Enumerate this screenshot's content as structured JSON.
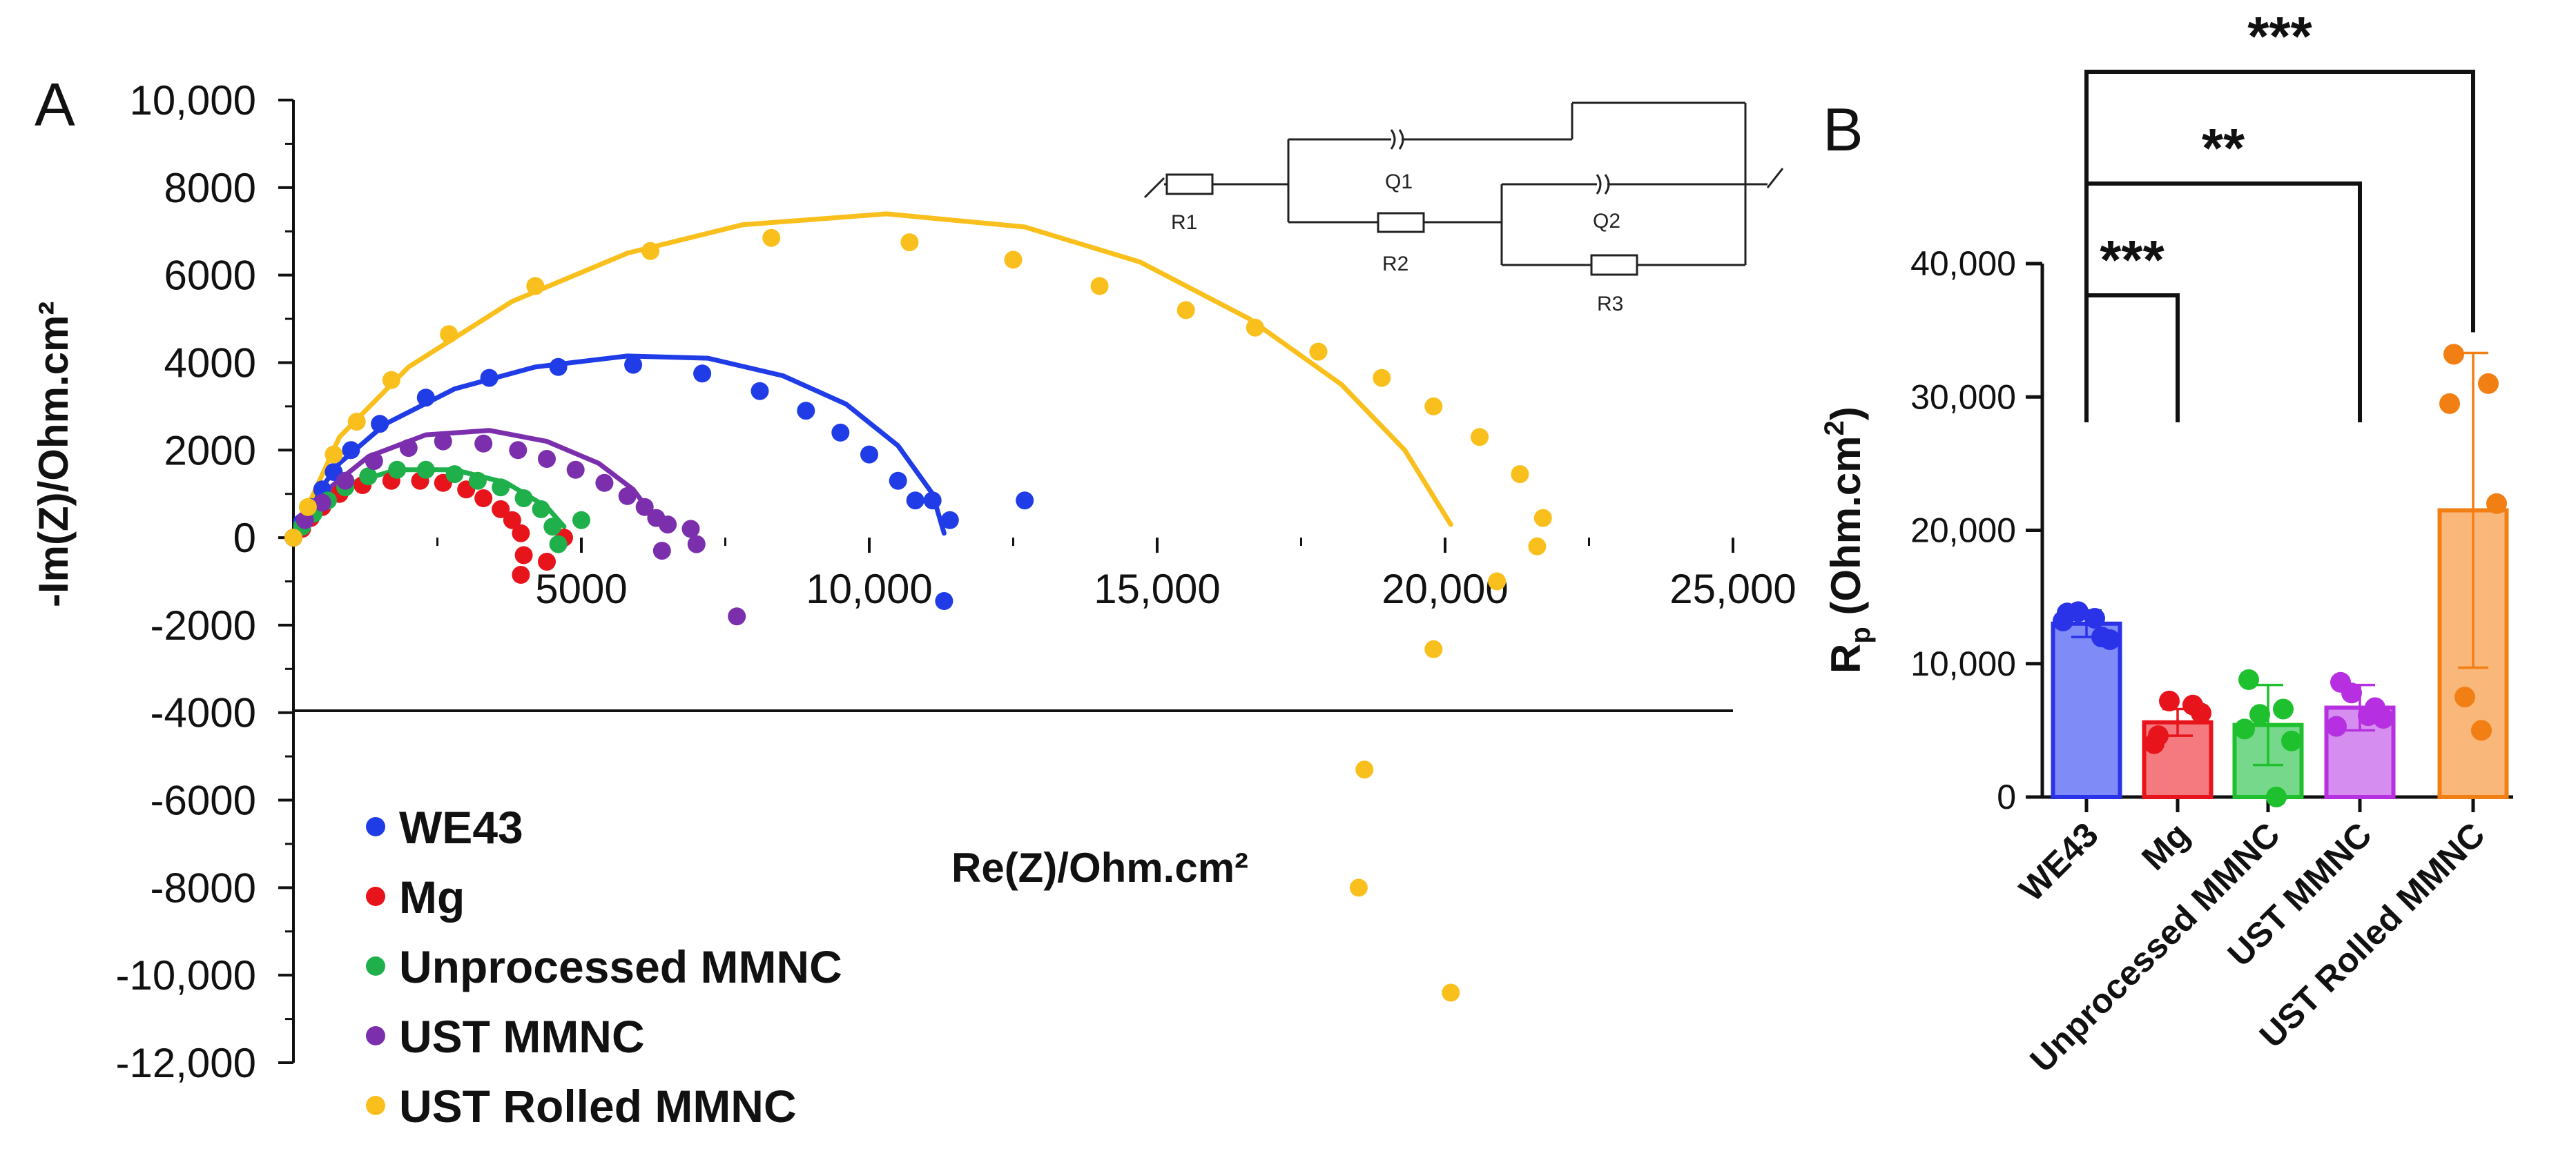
{
  "colors": {
    "WE43": "#1f3ce6",
    "Mg": "#e8141c",
    "Unprocessed MMNC": "#1fb04b",
    "UST MMNC": "#7b2fad",
    "UST Rolled MMNC": "#f9c01d",
    "bar_WE43": "#7f8cf8",
    "bar_Mg": "#f47a7f",
    "bar_Unprocessed MMNC": "#76d88a",
    "bar_UST MMNC": "#d58ef0",
    "bar_UST Rolled MMNC": "#f9b77a",
    "edge_WE43": "#2a33e8",
    "edge_Mg": "#e8141c",
    "edge_Unprocessed MMNC": "#1fc02d",
    "edge_UST MMNC": "#b62fe0",
    "edge_UST Rolled MMNC": "#f27f14"
  },
  "circuit": {
    "labels": [
      "R1",
      "Q1",
      "R2",
      "Q2",
      "R3"
    ]
  },
  "chart_data": [
    {
      "panel": "A",
      "type": "scatter",
      "title": "",
      "xlabel": "Re(Z)/Ohm.cm²",
      "ylabel": "-Im(Z)/Ohm.cm²",
      "xlim": [
        0,
        25000
      ],
      "ylim": [
        -12000,
        10000
      ],
      "xticks": [
        5000,
        10000,
        15000,
        20000,
        25000
      ],
      "xtick_labels": [
        "5000",
        "10,000",
        "15,000",
        "20,000",
        "25,000"
      ],
      "yticks": [
        10000,
        8000,
        6000,
        4000,
        2000,
        0,
        -2000,
        -4000,
        -6000,
        -8000,
        -10000,
        -12000
      ],
      "ytick_labels": [
        "10,000",
        "8000",
        "6000",
        "4000",
        "2000",
        "0",
        "-2000",
        "-4000",
        "-6000",
        "-8000",
        "-10,000",
        "-12,000"
      ],
      "legend": [
        "WE43",
        "Mg",
        "Unprocessed MMNC",
        "UST MMNC",
        "UST Rolled MMNC"
      ],
      "legend_position": "bottom-left",
      "series": [
        {
          "name": "WE43",
          "points": [
            [
              0,
              0
            ],
            [
              150,
              350
            ],
            [
              300,
              700
            ],
            [
              500,
              1100
            ],
            [
              700,
              1500
            ],
            [
              1000,
              2000
            ],
            [
              1500,
              2600
            ],
            [
              2300,
              3200
            ],
            [
              3400,
              3650
            ],
            [
              4600,
              3900
            ],
            [
              5900,
              3950
            ],
            [
              7100,
              3750
            ],
            [
              8100,
              3350
            ],
            [
              8900,
              2900
            ],
            [
              9500,
              2400
            ],
            [
              10000,
              1900
            ],
            [
              10500,
              1300
            ],
            [
              10800,
              850
            ],
            [
              11100,
              850
            ],
            [
              11400,
              400
            ],
            [
              11300,
              -1450
            ],
            [
              12700,
              850
            ]
          ],
          "fit": [
            [
              0,
              0
            ],
            [
              300,
              800
            ],
            [
              800,
              1700
            ],
            [
              1600,
              2600
            ],
            [
              2800,
              3400
            ],
            [
              4200,
              3900
            ],
            [
              5800,
              4150
            ],
            [
              7200,
              4100
            ],
            [
              8500,
              3700
            ],
            [
              9600,
              3050
            ],
            [
              10500,
              2100
            ],
            [
              11100,
              1000
            ],
            [
              11300,
              100
            ]
          ]
        },
        {
          "name": "Mg",
          "points": [
            [
              0,
              0
            ],
            [
              150,
              200
            ],
            [
              300,
              450
            ],
            [
              500,
              700
            ],
            [
              800,
              1000
            ],
            [
              1200,
              1200
            ],
            [
              1700,
              1300
            ],
            [
              2200,
              1300
            ],
            [
              2600,
              1250
            ],
            [
              3000,
              1100
            ],
            [
              3300,
              900
            ],
            [
              3600,
              650
            ],
            [
              3800,
              400
            ],
            [
              3950,
              100
            ],
            [
              4000,
              -400
            ],
            [
              3950,
              -850
            ],
            [
              4400,
              -550
            ],
            [
              4700,
              0
            ]
          ],
          "fit": []
        },
        {
          "name": "Unprocessed MMNC",
          "points": [
            [
              0,
              0
            ],
            [
              150,
              250
            ],
            [
              350,
              550
            ],
            [
              600,
              850
            ],
            [
              900,
              1150
            ],
            [
              1300,
              1400
            ],
            [
              1800,
              1550
            ],
            [
              2300,
              1550
            ],
            [
              2800,
              1450
            ],
            [
              3200,
              1300
            ],
            [
              3600,
              1150
            ],
            [
              4000,
              900
            ],
            [
              4300,
              650
            ],
            [
              4500,
              250
            ],
            [
              4600,
              -150
            ],
            [
              5000,
              400
            ]
          ],
          "fit": [
            [
              0,
              0
            ],
            [
              400,
              750
            ],
            [
              1000,
              1250
            ],
            [
              1800,
              1550
            ],
            [
              2800,
              1550
            ],
            [
              3700,
              1250
            ],
            [
              4400,
              700
            ],
            [
              4700,
              250
            ]
          ]
        },
        {
          "name": "UST MMNC",
          "points": [
            [
              0,
              0
            ],
            [
              200,
              400
            ],
            [
              500,
              800
            ],
            [
              900,
              1300
            ],
            [
              1400,
              1750
            ],
            [
              2000,
              2050
            ],
            [
              2600,
              2200
            ],
            [
              3300,
              2150
            ],
            [
              3900,
              2000
            ],
            [
              4400,
              1800
            ],
            [
              4900,
              1550
            ],
            [
              5400,
              1250
            ],
            [
              5800,
              950
            ],
            [
              6100,
              700
            ],
            [
              6300,
              450
            ],
            [
              6500,
              300
            ],
            [
              6900,
              200
            ],
            [
              7000,
              -150
            ],
            [
              6400,
              -300
            ],
            [
              7700,
              -1800
            ]
          ],
          "fit": [
            [
              0,
              0
            ],
            [
              500,
              1000
            ],
            [
              1300,
              1850
            ],
            [
              2300,
              2350
            ],
            [
              3400,
              2450
            ],
            [
              4400,
              2200
            ],
            [
              5300,
              1700
            ],
            [
              5900,
              1100
            ],
            [
              6300,
              400
            ]
          ]
        },
        {
          "name": "UST Rolled MMNC",
          "points": [
            [
              0,
              0
            ],
            [
              250,
              700
            ],
            [
              700,
              1900
            ],
            [
              1100,
              2650
            ],
            [
              1700,
              3600
            ],
            [
              2700,
              4650
            ],
            [
              4200,
              5750
            ],
            [
              6200,
              6550
            ],
            [
              8300,
              6850
            ],
            [
              10700,
              6750
            ],
            [
              12500,
              6350
            ],
            [
              14000,
              5750
            ],
            [
              15500,
              5200
            ],
            [
              16700,
              4800
            ],
            [
              17800,
              4250
            ],
            [
              18900,
              3650
            ],
            [
              19800,
              3000
            ],
            [
              20600,
              2300
            ],
            [
              21300,
              1450
            ],
            [
              21700,
              450
            ],
            [
              21600,
              -200
            ],
            [
              20900,
              -1000
            ],
            [
              19800,
              -2550
            ],
            [
              18600,
              -5300
            ],
            [
              18500,
              -8000
            ],
            [
              20100,
              -10400
            ]
          ],
          "fit": [
            [
              0,
              0
            ],
            [
              800,
              2300
            ],
            [
              2000,
              3900
            ],
            [
              3800,
              5400
            ],
            [
              5800,
              6500
            ],
            [
              7800,
              7150
            ],
            [
              10300,
              7400
            ],
            [
              12700,
              7100
            ],
            [
              14700,
              6300
            ],
            [
              16600,
              5000
            ],
            [
              18200,
              3500
            ],
            [
              19300,
              2000
            ],
            [
              20100,
              300
            ]
          ]
        }
      ]
    },
    {
      "panel": "B",
      "type": "bar",
      "title": "",
      "xlabel": "",
      "ylabel": "Rp (Ohm.cm²)",
      "ylabel_main": "R",
      "ylabel_sub": "p",
      "ylabel_rest": " (Ohm.cm",
      "ylabel_sup": "2",
      "ylabel_end": ")",
      "ylim": [
        0,
        40000
      ],
      "yticks": [
        0,
        10000,
        20000,
        30000,
        40000
      ],
      "ytick_labels": [
        "0",
        "10,000",
        "20,000",
        "30,000",
        "40,000"
      ],
      "categories": [
        "WE43",
        "Mg",
        "Unprocessed MMNC",
        "UST MMNC",
        "UST Rolled MMNC"
      ],
      "values": [
        13000,
        5600,
        5400,
        6700,
        21500
      ],
      "errors": [
        1000,
        1000,
        3000,
        1700,
        11800
      ],
      "points": [
        [
          13800,
          12000,
          13200,
          11800,
          13900,
          13400
        ],
        [
          4600,
          6900,
          4000,
          6300,
          7200
        ],
        [
          8800,
          6600,
          5100,
          4200,
          6200,
          0
        ],
        [
          8600,
          6700,
          5300,
          5900,
          7800,
          6100
        ],
        [
          33200,
          31000,
          29500,
          22000,
          7500,
          5000
        ]
      ],
      "significance": [
        {
          "from": "WE43",
          "to": "Mg",
          "label": "***"
        },
        {
          "from": "WE43",
          "to": "UST MMNC",
          "label": "**"
        },
        {
          "from": "WE43",
          "to": "UST Rolled MMNC",
          "label": "***"
        }
      ]
    }
  ]
}
